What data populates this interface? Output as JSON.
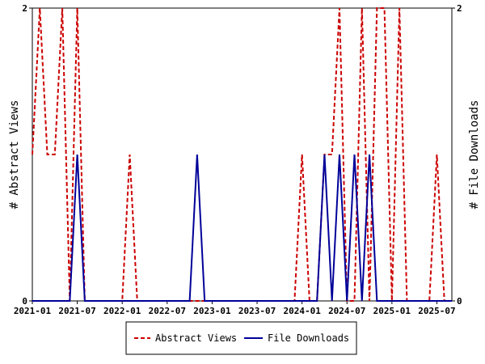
{
  "chart_data": {
    "type": "line",
    "title": "",
    "xlabel": "",
    "ylabel_left": "# Abstract Views",
    "ylabel_right": "# File Downloads",
    "ylim": [
      0,
      2
    ],
    "yticks_left": [
      "0",
      "2"
    ],
    "yticks_right": [
      "0",
      "2"
    ],
    "x_range": [
      "2021-01",
      "2025-09"
    ],
    "x_ticks": [
      "2021-01",
      "2021-07",
      "2022-01",
      "2022-07",
      "2023-01",
      "2023-07",
      "2024-01",
      "2024-07",
      "2025-01",
      "2025-07"
    ],
    "grid": false,
    "legend_position": "bottom",
    "colors": {
      "abstract_views": "#cc0000",
      "file_downloads": "#000099"
    },
    "series": [
      {
        "name": "Abstract Views",
        "style": "dashed",
        "x": [
          "2021-01",
          "2021-02",
          "2021-03",
          "2021-04",
          "2021-05",
          "2021-06",
          "2021-07",
          "2021-08",
          "2021-09",
          "2021-10",
          "2021-11",
          "2021-12",
          "2022-01",
          "2022-02",
          "2022-03",
          "2022-04",
          "2022-05",
          "2022-06",
          "2022-07",
          "2022-08",
          "2022-09",
          "2022-10",
          "2022-11",
          "2022-12",
          "2023-01",
          "2023-02",
          "2023-03",
          "2023-04",
          "2023-05",
          "2023-06",
          "2023-07",
          "2023-08",
          "2023-09",
          "2023-10",
          "2023-11",
          "2023-12",
          "2024-01",
          "2024-02",
          "2024-03",
          "2024-04",
          "2024-05",
          "2024-06",
          "2024-07",
          "2024-08",
          "2024-09",
          "2024-10",
          "2024-11",
          "2024-12",
          "2025-01",
          "2025-02",
          "2025-03",
          "2025-04",
          "2025-05",
          "2025-06",
          "2025-07",
          "2025-08",
          "2025-09"
        ],
        "values": [
          1,
          2,
          1,
          1,
          2,
          0,
          2,
          0,
          0,
          0,
          0,
          0,
          0,
          1,
          0,
          0,
          0,
          0,
          0,
          0,
          0,
          0,
          0,
          0,
          0,
          0,
          0,
          0,
          0,
          0,
          0,
          0,
          0,
          0,
          0,
          0,
          1,
          0,
          0,
          1,
          1,
          2,
          0,
          0,
          2,
          0,
          2,
          2,
          0,
          2,
          0,
          0,
          0,
          0,
          1,
          0,
          0
        ]
      },
      {
        "name": "File Downloads",
        "style": "solid",
        "x": [
          "2021-01",
          "2021-02",
          "2021-03",
          "2021-04",
          "2021-05",
          "2021-06",
          "2021-07",
          "2021-08",
          "2021-09",
          "2021-10",
          "2021-11",
          "2021-12",
          "2022-01",
          "2022-02",
          "2022-03",
          "2022-04",
          "2022-05",
          "2022-06",
          "2022-07",
          "2022-08",
          "2022-09",
          "2022-10",
          "2022-11",
          "2022-12",
          "2023-01",
          "2023-02",
          "2023-03",
          "2023-04",
          "2023-05",
          "2023-06",
          "2023-07",
          "2023-08",
          "2023-09",
          "2023-10",
          "2023-11",
          "2023-12",
          "2024-01",
          "2024-02",
          "2024-03",
          "2024-04",
          "2024-05",
          "2024-06",
          "2024-07",
          "2024-08",
          "2024-09",
          "2024-10",
          "2024-11",
          "2024-12",
          "2025-01",
          "2025-02",
          "2025-03",
          "2025-04",
          "2025-05",
          "2025-06",
          "2025-07",
          "2025-08",
          "2025-09"
        ],
        "values": [
          0,
          0,
          0,
          0,
          0,
          0,
          1,
          0,
          0,
          0,
          0,
          0,
          0,
          0,
          0,
          0,
          0,
          0,
          0,
          0,
          0,
          0,
          1,
          0,
          0,
          0,
          0,
          0,
          0,
          0,
          0,
          0,
          0,
          0,
          0,
          0,
          0,
          0,
          0,
          1,
          0,
          1,
          0,
          1,
          0,
          1,
          0,
          0,
          0,
          0,
          0,
          0,
          0,
          0,
          0,
          0,
          0
        ]
      }
    ]
  }
}
